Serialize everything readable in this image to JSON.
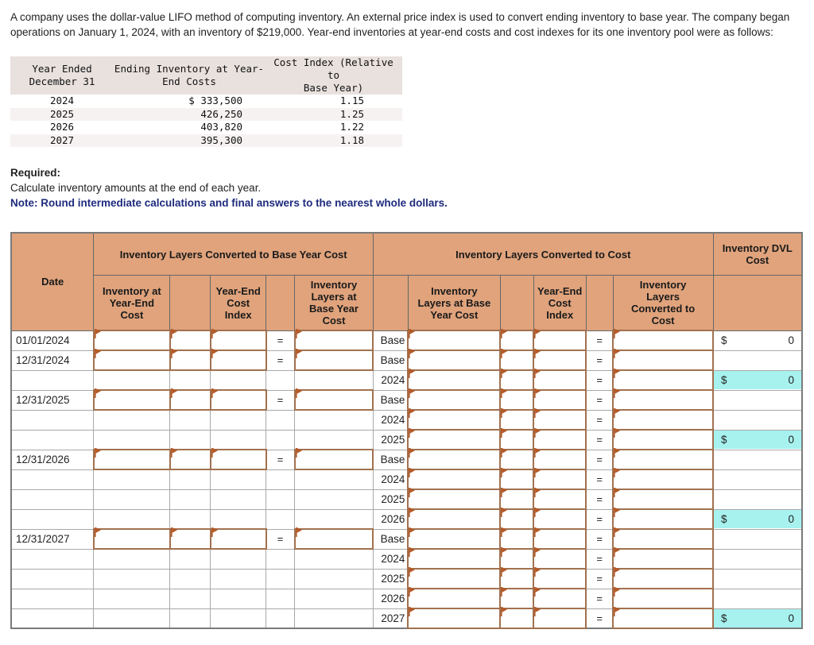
{
  "intro": "A company uses the dollar-value LIFO method of computing inventory. An external price index is used to convert ending inventory to base year. The company began operations on January 1, 2024, with an inventory of $219,000. Year-end inventories at year-end costs and cost indexes for its one inventory pool were as follows:",
  "data_table": {
    "headers": [
      {
        "line1": "Year Ended",
        "line2": "December 31"
      },
      {
        "line1": "Ending Inventory at Year-",
        "line2": "End Costs"
      },
      {
        "line1": "Cost Index (Relative to",
        "line2": "Base Year)"
      }
    ],
    "rows": [
      {
        "year": "2024",
        "inventory": "$ 333,500",
        "index": "1.15"
      },
      {
        "year": "2025",
        "inventory": "426,250",
        "index": "1.25"
      },
      {
        "year": "2026",
        "inventory": "403,820",
        "index": "1.22"
      },
      {
        "year": "2027",
        "inventory": "395,300",
        "index": "1.18"
      }
    ]
  },
  "required": {
    "label": "Required:",
    "text": "Calculate inventory amounts at the end of each year.",
    "note": "Note: Round intermediate calculations and final answers to the nearest whole dollars."
  },
  "worksheet": {
    "headers": {
      "date": "Date",
      "group_left": "Inventory Layers Converted to Base Year Cost",
      "group_right": "Inventory Layers Converted to Cost",
      "dvl": "Inventory DVL Cost",
      "left_col1": "Inventory at Year-End Cost",
      "left_col2": "Year-End Cost Index",
      "left_col3": "Inventory Layers at Base Year Cost",
      "right_col1": "Inventory Layers at Base Year Cost",
      "right_col2": "Year-End Cost Index",
      "right_col3": "Inventory Layers Converted to Cost"
    },
    "equals_symbol": "=",
    "rows": [
      {
        "date": "01/01/2024",
        "left_inputs": true,
        "layer": "Base",
        "dvl": {
          "currency": "$",
          "value": "0",
          "highlight": false
        }
      },
      {
        "date": "12/31/2024",
        "left_inputs": true,
        "layer": "Base",
        "dvl": null
      },
      {
        "date": "",
        "left_inputs": false,
        "layer": "2024",
        "dvl": {
          "currency": "$",
          "value": "0",
          "highlight": true
        }
      },
      {
        "date": "12/31/2025",
        "left_inputs": true,
        "layer": "Base",
        "dvl": null
      },
      {
        "date": "",
        "left_inputs": false,
        "layer": "2024",
        "dvl": null
      },
      {
        "date": "",
        "left_inputs": false,
        "layer": "2025",
        "dvl": {
          "currency": "$",
          "value": "0",
          "highlight": true
        }
      },
      {
        "date": "12/31/2026",
        "left_inputs": true,
        "layer": "Base",
        "dvl": null
      },
      {
        "date": "",
        "left_inputs": false,
        "layer": "2024",
        "dvl": null
      },
      {
        "date": "",
        "left_inputs": false,
        "layer": "2025",
        "dvl": null
      },
      {
        "date": "",
        "left_inputs": false,
        "layer": "2026",
        "dvl": {
          "currency": "$",
          "value": "0",
          "highlight": true
        }
      },
      {
        "date": "12/31/2027",
        "left_inputs": true,
        "layer": "Base",
        "dvl": null
      },
      {
        "date": "",
        "left_inputs": false,
        "layer": "2024",
        "dvl": null
      },
      {
        "date": "",
        "left_inputs": false,
        "layer": "2025",
        "dvl": null
      },
      {
        "date": "",
        "left_inputs": false,
        "layer": "2026",
        "dvl": null
      },
      {
        "date": "",
        "left_inputs": false,
        "layer": "2027",
        "dvl": {
          "currency": "$",
          "value": "0",
          "highlight": true
        }
      }
    ]
  },
  "colors": {
    "worksheet_header_fill": "#e0a37c",
    "input_border": "#a2714f",
    "flag": "#b35a28",
    "dvl_highlight": "#a7f2ef",
    "note_text": "#1e2b7d",
    "data_table_header_fill": "#e8e1de",
    "data_table_stripe": "#f6f2f1"
  }
}
